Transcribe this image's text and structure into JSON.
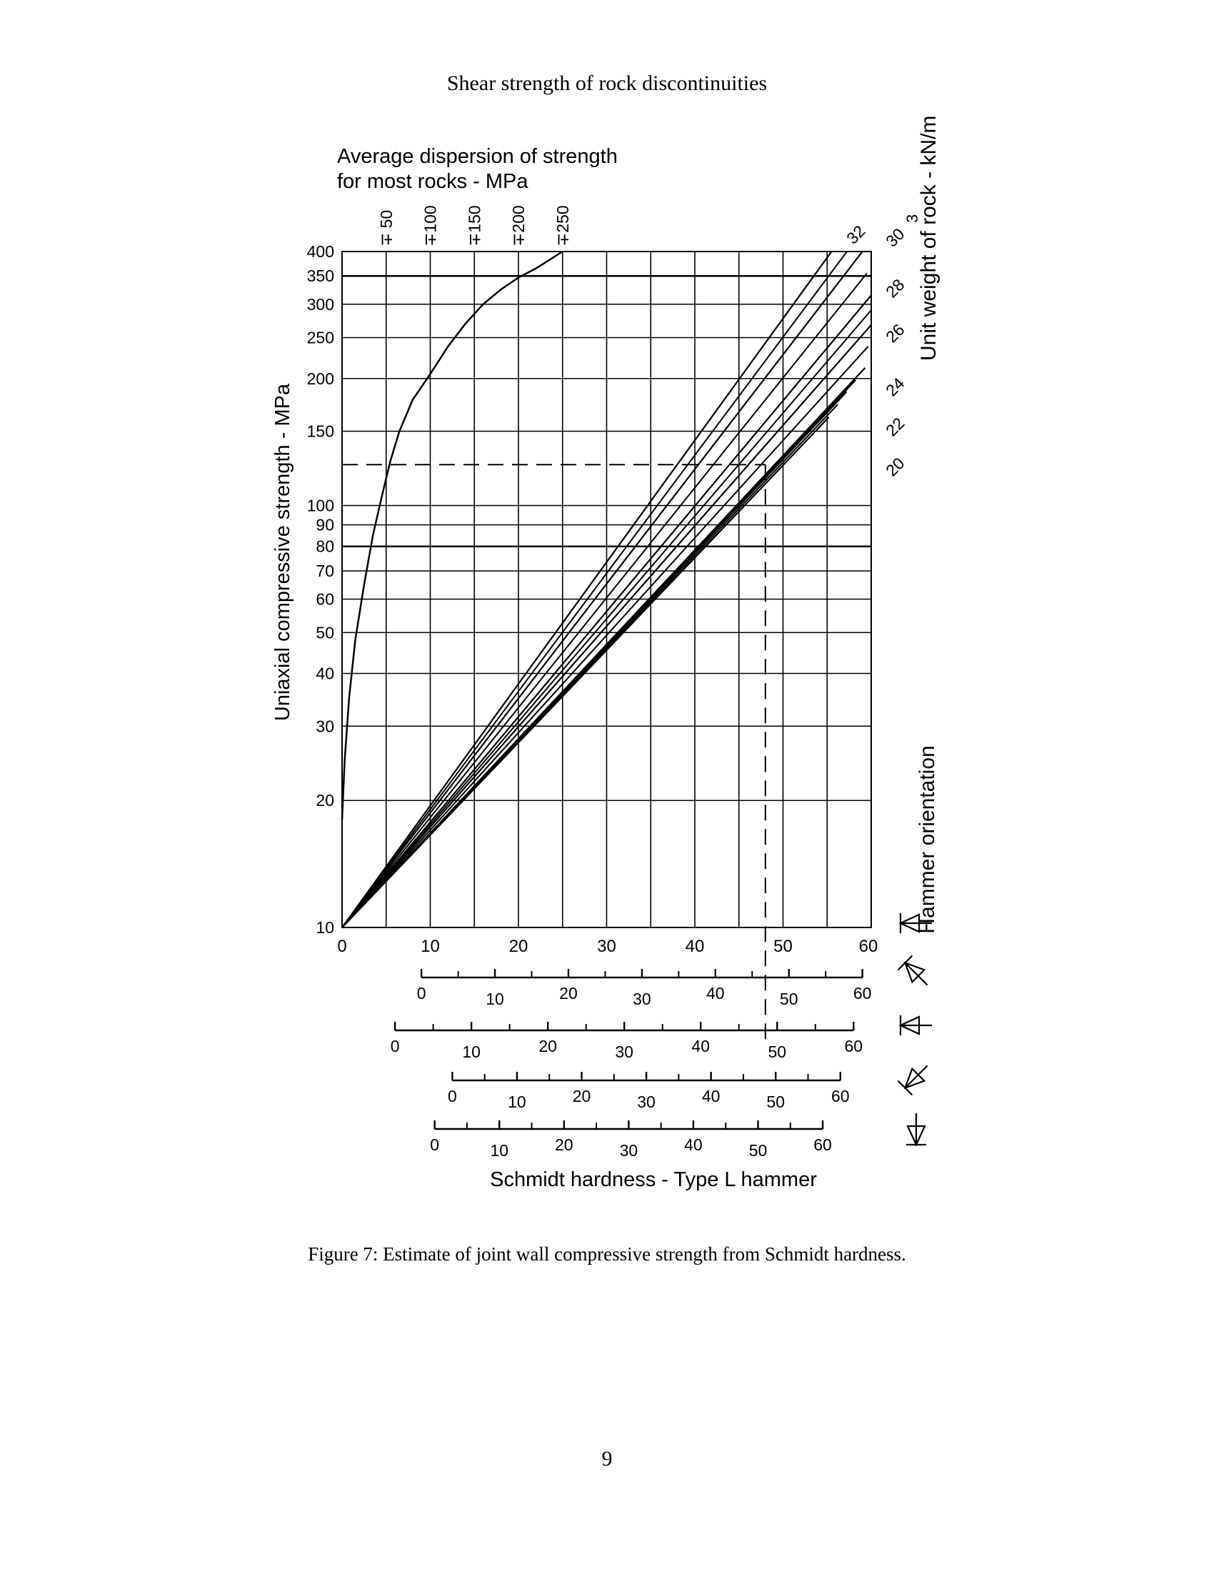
{
  "page": {
    "header": "Shear strength of rock discontinuities",
    "caption": "Figure 7: Estimate of joint wall compressive strength from Schmidt hardness.",
    "page_number": "9"
  },
  "chart_data": {
    "type": "line",
    "top_title_lines": [
      "Average dispersion of strength",
      "for most rocks - MPa"
    ],
    "ylabel": "Uniaxial compressive strength - MPa",
    "xlabel": "Schmidt hardness - Type L hammer",
    "right_top_label": "Unit weight of rock - kN/m",
    "right_top_superscript": "3",
    "right_bottom_label": "Hammer orientation",
    "y_scale": "log",
    "ylim": [
      10,
      400
    ],
    "y_ticks": [
      10,
      20,
      30,
      40,
      50,
      60,
      70,
      80,
      90,
      100,
      150,
      200,
      250,
      300,
      350,
      400
    ],
    "y_tick_labels": [
      "10",
      "20",
      "30",
      "40",
      "50",
      "60",
      "70",
      "80",
      "90",
      "100",
      "150",
      "200",
      "250",
      "300",
      "350",
      "400"
    ],
    "xlim": [
      0,
      60
    ],
    "x_ticks": [
      0,
      10,
      20,
      30,
      40,
      50,
      60
    ],
    "x_tick_labels": [
      "0",
      "10",
      "20",
      "30",
      "40",
      "50",
      "60"
    ],
    "vertical_gridlines": [
      0,
      5,
      10,
      15,
      20,
      25,
      30,
      35,
      40,
      45,
      50,
      55,
      60
    ],
    "dispersion_labels": [
      "∓ 50",
      "∓100",
      "∓150",
      "∓200",
      "∓250"
    ],
    "dispersion_positions_x": [
      5,
      10,
      15,
      20,
      25
    ],
    "dispersion_curve": {
      "x": [
        0,
        0.3,
        0.8,
        1.5,
        2.5,
        3.5,
        4.5,
        5.5,
        6.5,
        8,
        10,
        12,
        14,
        16,
        18,
        20,
        22,
        25
      ],
      "y": [
        18,
        25,
        35,
        48,
        65,
        85,
        105,
        128,
        150,
        178,
        205,
        238,
        270,
        300,
        325,
        347,
        365,
        400
      ]
    },
    "unit_weight_series": [
      {
        "name": "20",
        "end_y": 162,
        "x_end": 55.2
      },
      {
        "name": "22",
        "end_y": 186,
        "x_end": 57.2
      },
      {
        "name": "24",
        "end_y": 212,
        "x_end": 59.3
      },
      {
        "name": "26",
        "end_y": 268,
        "x_end": 60
      },
      {
        "name": "28",
        "end_y": 315,
        "x_end": 60
      },
      {
        "name": "30",
        "end_y": 400,
        "x_end": 59.0
      },
      {
        "name": "32",
        "end_y": 400,
        "x_end": 55.5
      }
    ],
    "unit_weight_origin": {
      "x": 0,
      "y": 10
    },
    "unit_weight_label_list": [
      "32",
      "30",
      "28",
      "26",
      "24",
      "22",
      "20"
    ],
    "example_path": {
      "x": 48,
      "y": 125
    },
    "hammer_scales": [
      {
        "zero_at_x": 9,
        "sixty_at_x": 59,
        "labels": [
          "0",
          "10",
          "20",
          "30",
          "40",
          "50",
          "60"
        ]
      },
      {
        "zero_at_x": 6,
        "sixty_at_x": 58,
        "labels": [
          "0",
          "10",
          "20",
          "30",
          "40",
          "50",
          "60"
        ]
      },
      {
        "zero_at_x": 12.5,
        "sixty_at_x": 56.5,
        "labels": [
          "0",
          "10",
          "20",
          "30",
          "40",
          "50",
          "60"
        ]
      },
      {
        "zero_at_x": 10.5,
        "sixty_at_x": 54.5,
        "labels": [
          "0",
          "10",
          "20",
          "30",
          "40",
          "50",
          "60"
        ]
      }
    ],
    "hammer_orientation_icons": [
      "arrow-down-horizontal",
      "arrow-down-45",
      "arrow-horizontal",
      "arrow-up-45",
      "arrow-up-vertical"
    ]
  }
}
